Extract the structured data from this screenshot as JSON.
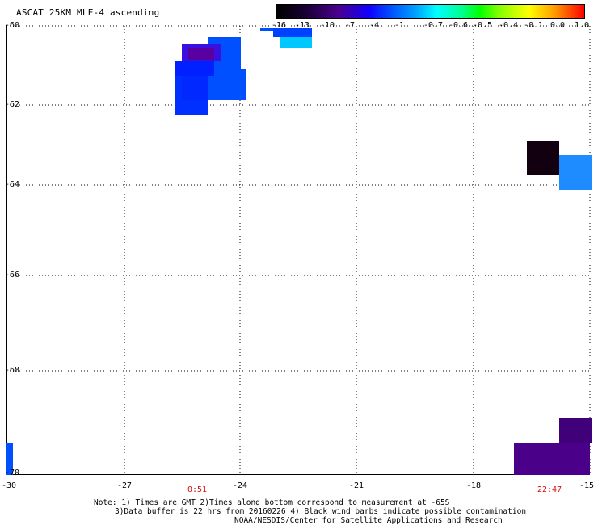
{
  "title": "ASCAT 25KM MLE-4 ascending",
  "colorbar": {
    "ticks": [
      "-16",
      "-13",
      "-10",
      "-7",
      "-4",
      "-1",
      "-0.7",
      "-0.6",
      "-0.5",
      "-0.4",
      "-0.1",
      "0.0",
      "1.0"
    ]
  },
  "axes": {
    "y_ticks": [
      "-60",
      "-62",
      "-64",
      "-66",
      "-68",
      "-70"
    ],
    "x_ticks": [
      "-30",
      "-27",
      "-24",
      "-21",
      "-18",
      "-15"
    ]
  },
  "times": {
    "left": "0:51",
    "right": "22:47"
  },
  "notes": {
    "line1": "Note: 1) Times are GMT 2)Times along bottom correspond to measurement at -65S",
    "line2": "3)Data buffer is 22 hrs from 20160226 4) Black wind barbs indicate possible contamination",
    "line3": "NOAA/NESDIS/Center for Satellite Applications and Research"
  },
  "colors": {
    "very-dark": "#120010",
    "purple-dark": "#3c0070",
    "purple": "#5a00a0",
    "blue-violet": "#3a10e0",
    "blue": "#0020ff",
    "mid-blue": "#0050ff",
    "light-blue": "#1e8cff",
    "cyan": "#00c8ff"
  }
}
